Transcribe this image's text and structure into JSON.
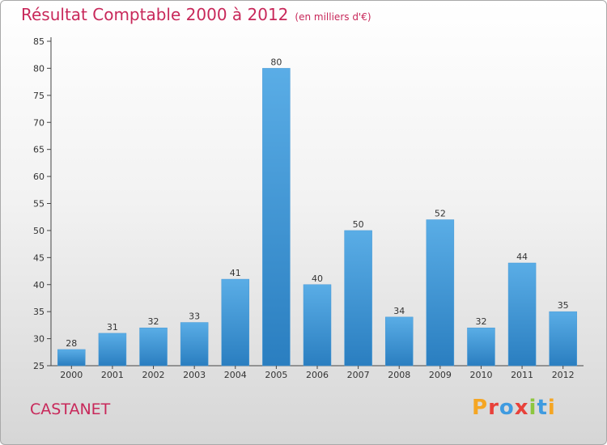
{
  "header": {
    "title": "Résultat Comptable 2000 à 2012",
    "subtitle": "(en milliers d'€)"
  },
  "footer": {
    "commune": "CASTANET",
    "logo_text": "Proxiti"
  },
  "colors": {
    "accent": "#c8285a",
    "bar_top": "#5aade6",
    "bar_bottom": "#2a7ec0",
    "axis": "#444444"
  },
  "chart_data": {
    "type": "bar",
    "title": "Résultat Comptable 2000 à 2012",
    "xlabel": "",
    "ylabel": "",
    "categories": [
      "2000",
      "2001",
      "2002",
      "2003",
      "2004",
      "2005",
      "2006",
      "2007",
      "2008",
      "2009",
      "2010",
      "2011",
      "2012"
    ],
    "values": [
      28,
      31,
      32,
      33,
      41,
      80,
      40,
      50,
      34,
      52,
      32,
      44,
      35
    ],
    "ylim": [
      25,
      85
    ],
    "yticks": [
      25,
      30,
      35,
      40,
      45,
      50,
      55,
      60,
      65,
      70,
      75,
      80,
      85
    ],
    "grid": false,
    "legend": "none"
  }
}
